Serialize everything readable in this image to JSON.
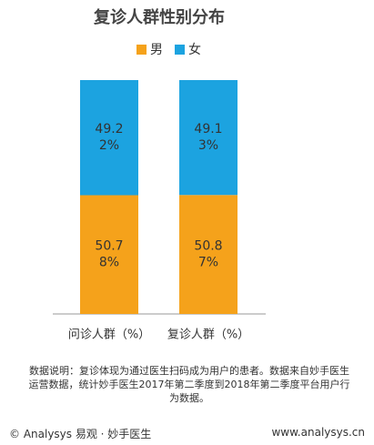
{
  "chart_data": {
    "type": "stacked-bar",
    "title": "复诊人群性别分布",
    "categories": [
      "问诊人群（%）",
      "复诊人群（%）"
    ],
    "series": [
      {
        "name": "男",
        "color": "#f5a21b",
        "values": [
          50.78,
          50.87
        ],
        "value_labels": [
          "50.78%",
          "50.87%"
        ]
      },
      {
        "name": "女",
        "color": "#1ca3e0",
        "values": [
          49.22,
          49.13
        ],
        "value_labels": [
          "49.22%",
          "49.13%"
        ]
      }
    ],
    "ylim": [
      0,
      100
    ],
    "legend": "top"
  },
  "note": "数据说明：复诊体现为通过医生扫码成为用户的患者。数据来自妙手医生运营数据，统计妙手医生2017年第二季度到2018年第二季度平台用户行为数据。",
  "footer": {
    "left": "© Analysys 易观 · 妙手医生",
    "right": "www.analysys.cn"
  }
}
